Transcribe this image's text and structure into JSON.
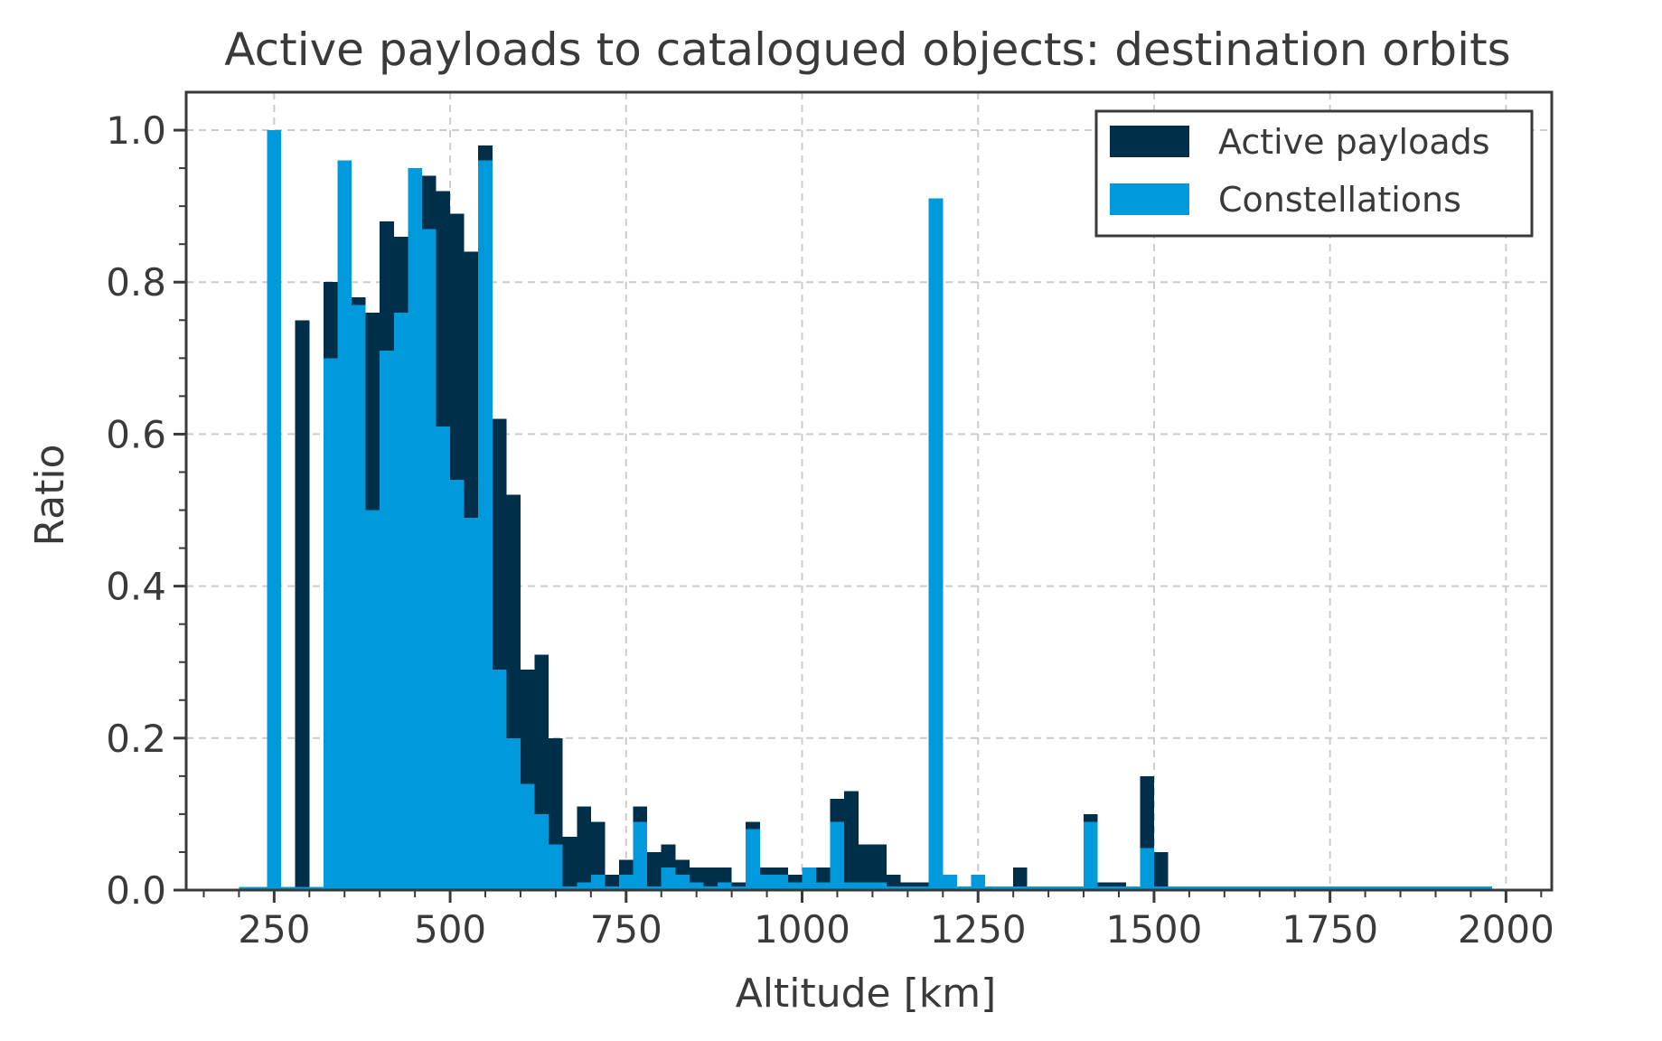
{
  "colors": {
    "active": "#003049",
    "constellation": "#009ADC",
    "text": "#3a3a3a",
    "grid": "#cccccc"
  },
  "chart_data": {
    "type": "bar",
    "title": "Active payloads to catalogued objects: destination orbits",
    "xlabel": "Altitude [km]",
    "ylabel": "Ratio",
    "xlim": [
      125,
      2065
    ],
    "ylim": [
      0,
      1.05
    ],
    "xticks": [
      250,
      500,
      750,
      1000,
      1250,
      1500,
      1750,
      2000
    ],
    "xtick_labels": [
      "250",
      "500",
      "750",
      "1000",
      "1250",
      "1500",
      "1750",
      "2000"
    ],
    "yticks": [
      0.0,
      0.2,
      0.4,
      0.6,
      0.8,
      1.0
    ],
    "ytick_labels": [
      "0.0",
      "0.2",
      "0.4",
      "0.6",
      "0.8",
      "1.0"
    ],
    "grid": true,
    "legend_position": "top-right",
    "bin_width": 20,
    "bin_start": 200,
    "series": [
      {
        "name": "Active payloads",
        "color": "#003049",
        "values": [
          0,
          0,
          1.0,
          0,
          0.75,
          0,
          0.8,
          0.96,
          0.78,
          0.76,
          0.88,
          0.86,
          0.95,
          0.94,
          0.92,
          0.89,
          0.84,
          0.98,
          0.62,
          0.52,
          0.29,
          0.31,
          0.2,
          0.07,
          0.11,
          0.09,
          0.02,
          0.04,
          0.11,
          0.05,
          0.06,
          0.04,
          0.03,
          0.03,
          0.03,
          0.01,
          0.09,
          0.03,
          0.03,
          0.02,
          0.03,
          0.03,
          0.12,
          0.13,
          0.06,
          0.06,
          0.02,
          0.01,
          0.01,
          0.91,
          0.02,
          0,
          0.02,
          0,
          0,
          0.03,
          0,
          0,
          0,
          0,
          0.1,
          0.01,
          0.01,
          0,
          0.15,
          0.05,
          0,
          0,
          0,
          0,
          0,
          0,
          0,
          0,
          0,
          0,
          0,
          0,
          0,
          0,
          0,
          0,
          0,
          0,
          0,
          0,
          0,
          0,
          0
        ]
      },
      {
        "name": "Constellations",
        "color": "#009ADC",
        "values": [
          0,
          0,
          1.0,
          0,
          0,
          0,
          0.7,
          0.96,
          0.77,
          0.5,
          0.71,
          0.76,
          0.95,
          0.87,
          0.61,
          0.54,
          0.49,
          0.96,
          0.29,
          0.2,
          0.14,
          0.1,
          0.06,
          0.005,
          0.01,
          0.02,
          0.005,
          0.02,
          0.09,
          0.005,
          0.03,
          0.02,
          0.01,
          0.005,
          0.01,
          0.005,
          0.08,
          0.02,
          0.02,
          0.01,
          0.03,
          0.01,
          0.09,
          0.01,
          0.01,
          0.01,
          0.005,
          0.005,
          0.005,
          0.91,
          0.02,
          0.005,
          0.02,
          0.005,
          0.005,
          0.005,
          0.005,
          0.005,
          0.005,
          0.005,
          0.09,
          0.005,
          0.005,
          0.005,
          0.055,
          0.005,
          0.005,
          0.005,
          0.005,
          0.005,
          0.005,
          0.005,
          0.005,
          0.005,
          0.005,
          0.005,
          0.005,
          0.005,
          0.005,
          0.005,
          0.005,
          0.005,
          0.005,
          0.005,
          0.005,
          0.005,
          0.005,
          0.005,
          0.005
        ]
      }
    ]
  }
}
